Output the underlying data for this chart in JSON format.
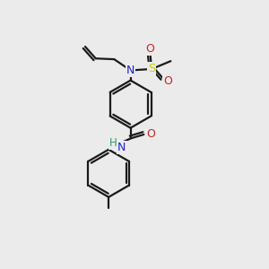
{
  "background_color": "#ebebeb",
  "bond_color": "#1a1a1a",
  "n_color": "#2222cc",
  "o_color": "#cc2222",
  "s_color": "#cccc00",
  "h_color": "#339966",
  "line_width": 1.6,
  "figsize": [
    3.0,
    3.0
  ],
  "dpi": 100,
  "xlim": [
    0,
    10
  ],
  "ylim": [
    0,
    10
  ]
}
